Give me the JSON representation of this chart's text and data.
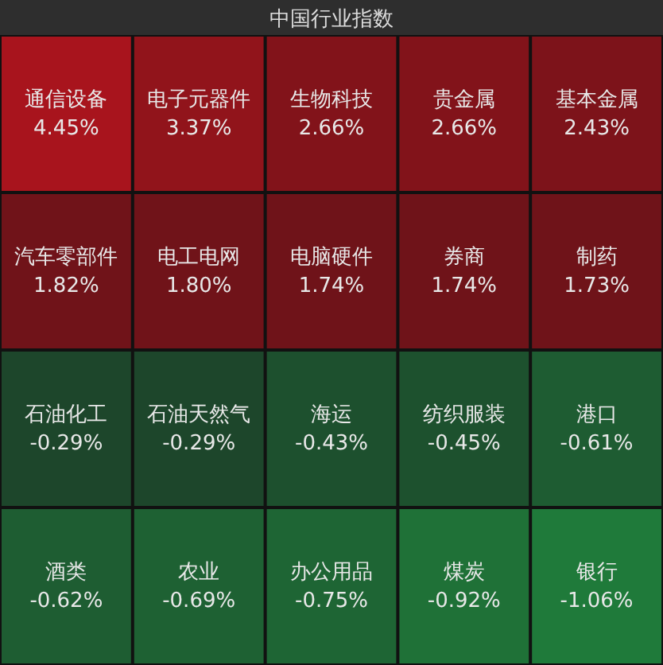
{
  "chart_data": {
    "type": "other",
    "title": "中国行业指数",
    "categories": [
      "通信设备",
      "电子元器件",
      "生物科技",
      "贵金属",
      "基本金属",
      "汽车零部件",
      "电工电网",
      "电脑硬件",
      "券商",
      "制药",
      "石油化工",
      "石油天然气",
      "海运",
      "纺织服装",
      "港口",
      "酒类",
      "农业",
      "办公用品",
      "煤炭",
      "银行"
    ],
    "values": [
      4.45,
      3.37,
      2.66,
      2.66,
      2.43,
      1.82,
      1.8,
      1.74,
      1.74,
      1.73,
      -0.29,
      -0.29,
      -0.43,
      -0.45,
      -0.61,
      -0.62,
      -0.69,
      -0.75,
      -0.92,
      -1.06
    ],
    "value_labels": [
      "4.45%",
      "3.37%",
      "2.66%",
      "2.66%",
      "2.43%",
      "1.82%",
      "1.80%",
      "1.74%",
      "1.74%",
      "1.73%",
      "-0.29%",
      "-0.29%",
      "-0.43%",
      "-0.45%",
      "-0.61%",
      "-0.62%",
      "-0.69%",
      "-0.75%",
      "-0.92%",
      "-1.06%"
    ]
  }
}
